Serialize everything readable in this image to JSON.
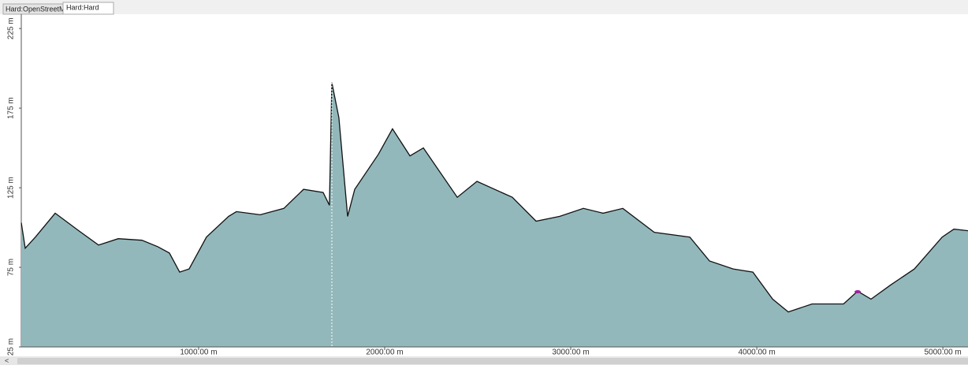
{
  "tabs": [
    "Hard:OpenStreetMap*",
    "Hard:Hard"
  ],
  "chart_data": {
    "type": "area",
    "color": "#93b8bb",
    "x": [
      47,
      68,
      123,
      229,
      356,
      462,
      568,
      695,
      780,
      843,
      898,
      949,
      1042,
      1161,
      1203,
      1331,
      1458,
      1564,
      1669,
      1703,
      1716,
      1754,
      1801,
      1839,
      1966,
      2042,
      2136,
      2208,
      2390,
      2496,
      2686,
      2814,
      2941,
      3068,
      3174,
      3280,
      3449,
      3640,
      3746,
      3873,
      3979,
      4085,
      4169,
      4297,
      4466,
      4542,
      4614,
      4720,
      4847,
      4996,
      5059,
      5135
    ],
    "values": [
      103,
      87,
      94,
      109,
      98,
      89,
      93,
      92,
      88,
      84,
      72,
      74,
      94,
      107,
      110,
      108,
      112,
      124,
      122,
      114,
      191,
      169,
      107,
      124,
      146,
      162,
      145,
      150,
      119,
      129,
      119,
      104,
      107,
      112,
      109,
      112,
      97,
      94,
      79,
      74,
      72,
      55,
      47,
      52,
      52,
      60,
      55,
      64,
      74,
      94,
      99,
      98
    ],
    "xlim": [
      47,
      5135
    ],
    "ylim": [
      25,
      234
    ],
    "xticks": [
      {
        "value": 1000,
        "label": "1000.00 m"
      },
      {
        "value": 2000,
        "label": "2000.00 m"
      },
      {
        "value": 3000,
        "label": "3000.00 m"
      },
      {
        "value": 4000,
        "label": "4000.00 m"
      },
      {
        "value": 5000,
        "label": "5000.00 m"
      }
    ],
    "yticks": [
      {
        "value": 25,
        "label": "25 m"
      },
      {
        "value": 75,
        "label": "75 m"
      },
      {
        "value": 125,
        "label": "125 m"
      },
      {
        "value": 175,
        "label": "175 m"
      },
      {
        "value": 225,
        "label": "225 m"
      }
    ]
  }
}
